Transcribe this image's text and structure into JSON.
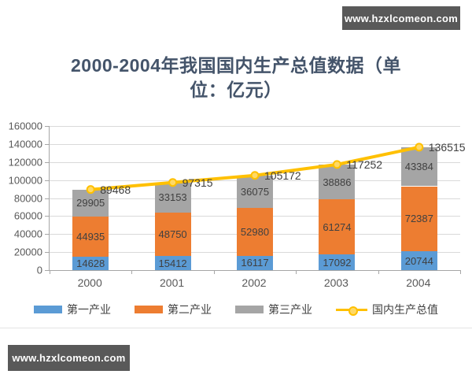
{
  "watermark": {
    "text": "www.hzxlcomeon.com"
  },
  "title": {
    "full": "2000-2004年我国国内生产总值数据（单位：亿元）",
    "lines": [
      "2000-2004年我国国内生产总值数据（单",
      "位：亿元）"
    ]
  },
  "colors": {
    "title_text": "#44546A",
    "watermark_bg": "#595959",
    "axis": "#A6A6A6",
    "grid": "#D9D9D9",
    "tick_text": "#595959",
    "value_text": "#404040",
    "marker_fill": "#FFD966"
  },
  "chart_data": {
    "type": "bar",
    "subtype": "stacked-bar-with-line",
    "title": "2000-2004年我国国内生产总值数据（单位：亿元）",
    "categories": [
      "2000",
      "2001",
      "2002",
      "2003",
      "2004"
    ],
    "series": [
      {
        "name": "第一产业",
        "color": "#5B9BD5",
        "values": [
          14628,
          15412,
          16117,
          17092,
          20744
        ]
      },
      {
        "name": "第二产业",
        "color": "#ED7D31",
        "values": [
          44935,
          48750,
          52980,
          61274,
          72387
        ]
      },
      {
        "name": "第三产业",
        "color": "#A5A5A5",
        "values": [
          29905,
          33153,
          36075,
          38886,
          43384
        ]
      }
    ],
    "line_series": {
      "name": "国内生产总值",
      "color": "#FFC000",
      "values": [
        89468,
        97315,
        105172,
        117252,
        136515
      ]
    },
    "ylim": [
      0,
      160000
    ],
    "ytick_step": 20000,
    "yticks": [
      "0",
      "20000",
      "40000",
      "60000",
      "80000",
      "100000",
      "120000",
      "140000",
      "160000"
    ],
    "grid": true,
    "legend_position": "bottom",
    "xlabel": "",
    "ylabel": ""
  }
}
